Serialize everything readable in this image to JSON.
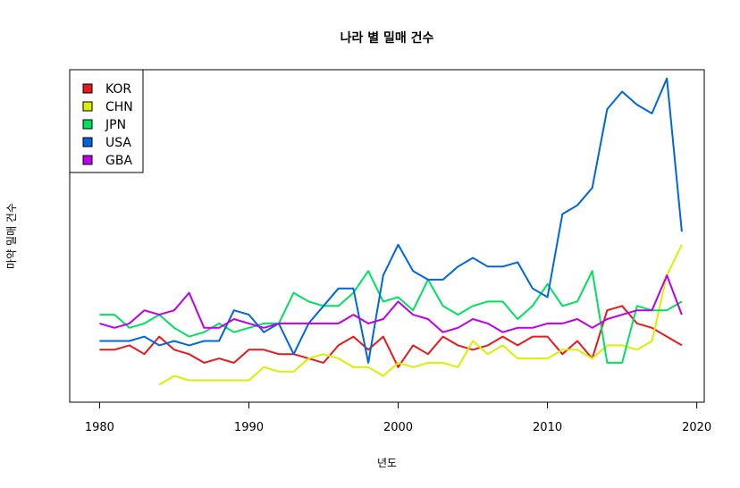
{
  "chart_data": {
    "type": "line",
    "title": "나라 별 밀매 건수",
    "xlabel": "년도",
    "ylabel": "마약 밀매 건수",
    "xlim": [
      1978,
      2020.5
    ],
    "ylim": [
      0,
      38
    ],
    "x_ticks": [
      1980,
      1990,
      2000,
      2010,
      2020
    ],
    "x_tick_labels": [
      "1980",
      "1990",
      "2000",
      "2010",
      "2020"
    ],
    "legend_position": "top-left",
    "series": [
      {
        "name": "KOR",
        "color": "#e41a1c",
        "x": [
          1980,
          1981,
          1982,
          1983,
          1984,
          1985,
          1986,
          1987,
          1988,
          1989,
          1990,
          1991,
          1992,
          1993,
          1994,
          1995,
          1996,
          1997,
          1998,
          1999,
          2000,
          2001,
          2002,
          2003,
          2004,
          2005,
          2006,
          2007,
          2008,
          2009,
          2010,
          2011,
          2012,
          2013,
          2014,
          2015,
          2016,
          2017,
          2018,
          2019
        ],
        "y": [
          6,
          6,
          6.5,
          5.5,
          7.5,
          6,
          5.5,
          4.5,
          5,
          4.5,
          6,
          6,
          5.5,
          5.5,
          5,
          4.5,
          6.5,
          7.5,
          6,
          7.5,
          4,
          6.5,
          5.5,
          7.5,
          6.5,
          6,
          6.5,
          7.5,
          6.5,
          7.5,
          7.5,
          5.5,
          7,
          5,
          10.5,
          11,
          9,
          8.5,
          7.5,
          6.5
        ]
      },
      {
        "name": "CHN",
        "color": "#d8f000",
        "x": [
          1984,
          1985,
          1986,
          1987,
          1988,
          1989,
          1990,
          1991,
          1992,
          1993,
          1994,
          1995,
          1996,
          1997,
          1998,
          1999,
          2000,
          2001,
          2002,
          2003,
          2004,
          2005,
          2006,
          2007,
          2008,
          2009,
          2010,
          2011,
          2012,
          2013,
          2014,
          2015,
          2016,
          2017,
          2018,
          2019
        ],
        "y": [
          2,
          3,
          2.5,
          2.5,
          2.5,
          2.5,
          2.5,
          4,
          3.5,
          3.5,
          5,
          5.5,
          5,
          4,
          4,
          3,
          4.5,
          4,
          4.5,
          4.5,
          4,
          7,
          5.5,
          6.5,
          5,
          5,
          5,
          6,
          6,
          5,
          6.5,
          6.5,
          6,
          7,
          14.5,
          18
        ]
      },
      {
        "name": "JPN",
        "color": "#00e060",
        "x": [
          1980,
          1981,
          1982,
          1983,
          1984,
          1985,
          1986,
          1987,
          1988,
          1989,
          1990,
          1991,
          1992,
          1993,
          1994,
          1995,
          1996,
          1997,
          1998,
          1999,
          2000,
          2001,
          2002,
          2003,
          2004,
          2005,
          2006,
          2007,
          2008,
          2009,
          2010,
          2011,
          2012,
          2013,
          2014,
          2015,
          2016,
          2017,
          2018,
          2019
        ],
        "y": [
          10,
          10,
          8.5,
          9,
          10,
          8.5,
          7.5,
          8,
          9,
          8,
          8.5,
          9,
          9,
          12.5,
          11.5,
          11,
          11,
          12.5,
          15,
          11.5,
          12,
          10.5,
          14,
          11,
          10,
          11,
          11.5,
          11.5,
          9.5,
          11,
          13.5,
          11,
          11.5,
          15,
          4.5,
          4.5,
          11,
          10.5,
          10.5,
          11.5
        ]
      },
      {
        "name": "USA",
        "color": "#0066dd",
        "x": [
          1980,
          1981,
          1982,
          1983,
          1984,
          1985,
          1986,
          1987,
          1988,
          1989,
          1990,
          1991,
          1992,
          1993,
          1994,
          1995,
          1996,
          1997,
          1998,
          1999,
          2000,
          2001,
          2002,
          2003,
          2004,
          2005,
          2006,
          2007,
          2008,
          2009,
          2010,
          2011,
          2012,
          2013,
          2014,
          2015,
          2016,
          2017,
          2018,
          2019
        ],
        "y": [
          7,
          7,
          7,
          7.5,
          6.5,
          7,
          6.5,
          7,
          7,
          10.5,
          10,
          8,
          9,
          5.5,
          9,
          11,
          13,
          13,
          4.5,
          14.5,
          18,
          15,
          14,
          14,
          15.5,
          16.5,
          15.5,
          15.5,
          16,
          13,
          12,
          21.5,
          22.5,
          24.5,
          33.5,
          35.5,
          34,
          33,
          37,
          19.5
        ]
      },
      {
        "name": "GBA",
        "color": "#bb00ee",
        "x": [
          1980,
          1981,
          1982,
          1983,
          1984,
          1985,
          1986,
          1987,
          1988,
          1989,
          1990,
          1991,
          1992,
          1993,
          1994,
          1995,
          1996,
          1997,
          1998,
          1999,
          2000,
          2001,
          2002,
          2003,
          2004,
          2005,
          2006,
          2007,
          2008,
          2009,
          2010,
          2011,
          2012,
          2013,
          2014,
          2015,
          2016,
          2017,
          2018,
          2019
        ],
        "y": [
          9,
          8.5,
          9,
          10.5,
          10,
          10.5,
          12.5,
          8.5,
          8.5,
          9.5,
          9,
          8.5,
          9,
          9,
          9,
          9,
          9,
          10,
          9,
          9.5,
          11.5,
          10,
          9.5,
          8,
          8.5,
          9.5,
          9,
          8,
          8.5,
          8.5,
          9,
          9,
          9.5,
          8.5,
          9.5,
          10,
          10.5,
          10.5,
          14.5,
          10
        ]
      }
    ]
  }
}
